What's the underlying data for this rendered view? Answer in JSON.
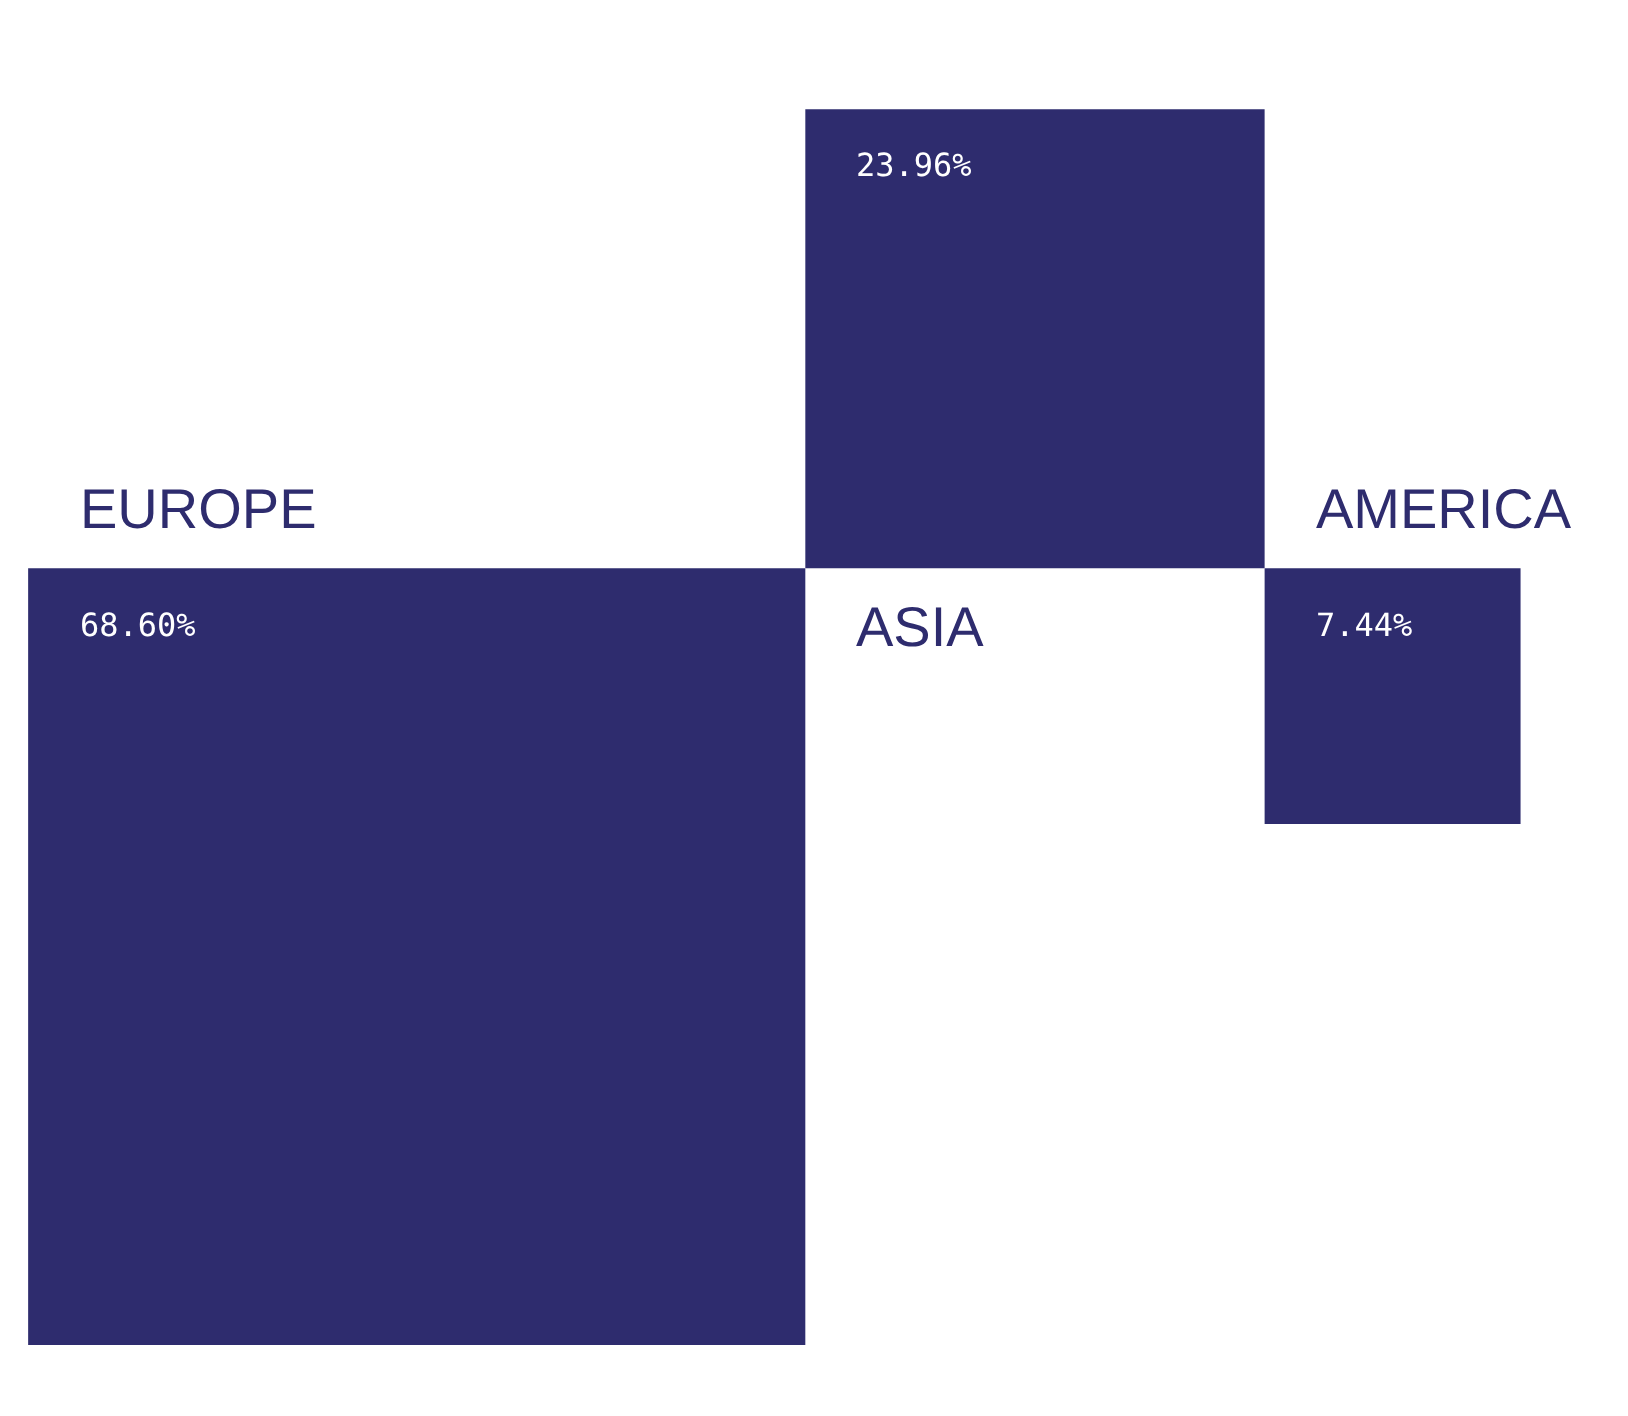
{
  "chart_data": {
    "type": "other",
    "categories": [
      "EUROPE",
      "ASIA",
      "AMERICA"
    ],
    "values": [
      68.6,
      23.96,
      7.44
    ],
    "value_labels": [
      "68.60%",
      "23.96%",
      "7.44%"
    ],
    "color": "#2e2c6e"
  }
}
